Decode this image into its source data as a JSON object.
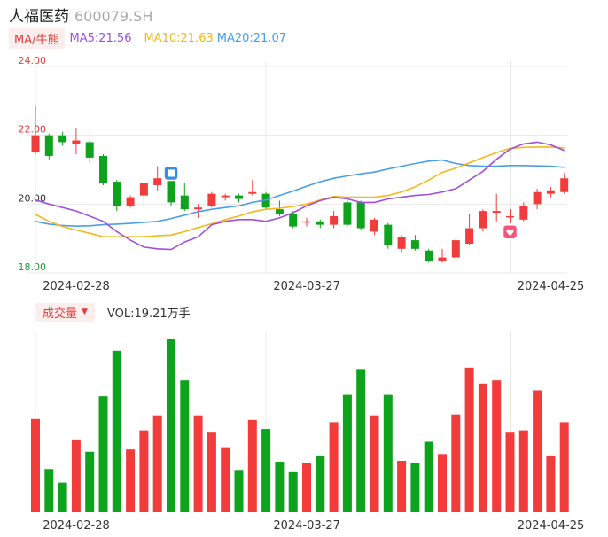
{
  "header": {
    "name": "人福医药",
    "code": "600079.SH"
  },
  "ma": {
    "toggle": "MA/牛熊",
    "ma5": "MA5:21.56",
    "ma10": "MA10:21.63",
    "ma20": "MA20:21.07"
  },
  "volume": {
    "toggle": "成交量",
    "label": "VOL:19.21万手"
  },
  "colors": {
    "up": "#f23b3b",
    "down": "#0ea31c",
    "ma5": "#a14fdb",
    "ma10": "#f3b81c",
    "ma20": "#4a9ee6",
    "grid": "#e8e8e8"
  },
  "badges": [
    {
      "icon": "blue-badge-icon",
      "index": 10
    },
    {
      "icon": "heart-badge-icon",
      "index": 35
    }
  ],
  "chart_data": {
    "type": "candlestick",
    "y_ticks": [
      "24.00",
      "22.00",
      "20.00",
      "18.00"
    ],
    "y_tick_values": [
      24,
      22,
      20,
      18
    ],
    "ylim": [
      18,
      24
    ],
    "x_ticks": [
      {
        "label": "2024-02-28",
        "index": 0
      },
      {
        "label": "2024-03-27",
        "index": 17
      },
      {
        "label": "2024-04-25",
        "index": 35
      }
    ],
    "candles": [
      {
        "o": 21.5,
        "c": 22.0,
        "h": 22.85,
        "l": 21.45,
        "v": 2.05
      },
      {
        "o": 22.0,
        "c": 21.4,
        "h": 22.05,
        "l": 21.3,
        "v": 0.95
      },
      {
        "o": 22.0,
        "c": 21.8,
        "h": 22.1,
        "l": 21.7,
        "v": 0.65
      },
      {
        "o": 21.75,
        "c": 21.85,
        "h": 22.2,
        "l": 21.45,
        "v": 1.6
      },
      {
        "o": 21.8,
        "c": 21.35,
        "h": 21.85,
        "l": 21.2,
        "v": 1.33
      },
      {
        "o": 21.4,
        "c": 20.6,
        "h": 21.45,
        "l": 20.55,
        "v": 2.55
      },
      {
        "o": 20.65,
        "c": 19.95,
        "h": 20.7,
        "l": 19.8,
        "v": 3.55
      },
      {
        "o": 19.95,
        "c": 20.2,
        "h": 20.25,
        "l": 19.9,
        "v": 1.38
      },
      {
        "o": 20.25,
        "c": 20.6,
        "h": 20.65,
        "l": 19.9,
        "v": 1.8
      },
      {
        "o": 20.55,
        "c": 20.75,
        "h": 21.1,
        "l": 20.4,
        "v": 2.13
      },
      {
        "o": 20.8,
        "c": 20.05,
        "h": 20.95,
        "l": 19.95,
        "v": 3.8
      },
      {
        "o": 20.25,
        "c": 19.85,
        "h": 20.6,
        "l": 19.8,
        "v": 2.9
      },
      {
        "o": 19.85,
        "c": 19.9,
        "h": 20.0,
        "l": 19.6,
        "v": 2.13
      },
      {
        "o": 19.95,
        "c": 20.3,
        "h": 20.35,
        "l": 19.9,
        "v": 1.75
      },
      {
        "o": 20.2,
        "c": 20.25,
        "h": 20.3,
        "l": 20.1,
        "v": 1.43
      },
      {
        "o": 20.25,
        "c": 20.15,
        "h": 20.3,
        "l": 20.05,
        "v": 0.93
      },
      {
        "o": 20.3,
        "c": 20.35,
        "h": 20.7,
        "l": 20.25,
        "v": 2.03
      },
      {
        "o": 20.3,
        "c": 19.9,
        "h": 20.35,
        "l": 19.85,
        "v": 1.83
      },
      {
        "o": 19.85,
        "c": 19.7,
        "h": 20.1,
        "l": 19.65,
        "v": 1.11
      },
      {
        "o": 19.7,
        "c": 19.35,
        "h": 19.8,
        "l": 19.3,
        "v": 0.88
      },
      {
        "o": 19.5,
        "c": 19.5,
        "h": 19.6,
        "l": 19.35,
        "v": 1.08
      },
      {
        "o": 19.5,
        "c": 19.4,
        "h": 19.55,
        "l": 19.3,
        "v": 1.23
      },
      {
        "o": 19.4,
        "c": 19.65,
        "h": 19.8,
        "l": 19.3,
        "v": 1.98
      },
      {
        "o": 20.05,
        "c": 19.4,
        "h": 20.1,
        "l": 19.35,
        "v": 2.58
      },
      {
        "o": 20.05,
        "c": 19.3,
        "h": 20.1,
        "l": 19.25,
        "v": 3.15
      },
      {
        "o": 19.2,
        "c": 19.55,
        "h": 19.6,
        "l": 19.1,
        "v": 2.13
      },
      {
        "o": 19.4,
        "c": 18.8,
        "h": 19.45,
        "l": 18.7,
        "v": 2.58
      },
      {
        "o": 18.7,
        "c": 19.05,
        "h": 19.1,
        "l": 18.6,
        "v": 1.13
      },
      {
        "o": 18.95,
        "c": 18.7,
        "h": 19.1,
        "l": 18.65,
        "v": 1.08
      },
      {
        "o": 18.65,
        "c": 18.35,
        "h": 18.7,
        "l": 18.3,
        "v": 1.55
      },
      {
        "o": 18.35,
        "c": 18.45,
        "h": 18.7,
        "l": 18.3,
        "v": 1.28
      },
      {
        "o": 18.45,
        "c": 18.95,
        "h": 19.0,
        "l": 18.4,
        "v": 2.15
      },
      {
        "o": 18.85,
        "c": 19.3,
        "h": 19.7,
        "l": 18.8,
        "v": 3.18
      },
      {
        "o": 19.3,
        "c": 19.8,
        "h": 19.85,
        "l": 19.2,
        "v": 2.83
      },
      {
        "o": 19.75,
        "c": 19.8,
        "h": 20.3,
        "l": 19.5,
        "v": 2.9
      },
      {
        "o": 19.65,
        "c": 19.65,
        "h": 19.85,
        "l": 19.45,
        "v": 1.75
      },
      {
        "o": 19.55,
        "c": 19.95,
        "h": 20.05,
        "l": 19.5,
        "v": 1.8
      },
      {
        "o": 20.0,
        "c": 20.35,
        "h": 20.45,
        "l": 19.85,
        "v": 2.68
      },
      {
        "o": 20.3,
        "c": 20.4,
        "h": 20.5,
        "l": 20.2,
        "v": 1.23
      },
      {
        "o": 20.35,
        "c": 20.75,
        "h": 20.9,
        "l": 20.3,
        "v": 1.98
      }
    ],
    "ma5": [
      20.12,
      20.0,
      19.9,
      19.8,
      19.65,
      19.5,
      19.2,
      18.95,
      18.75,
      18.7,
      18.68,
      18.9,
      19.05,
      19.4,
      19.5,
      19.55,
      19.55,
      19.5,
      19.6,
      19.75,
      19.95,
      20.1,
      20.2,
      20.15,
      20.05,
      20.05,
      20.15,
      20.2,
      20.25,
      20.28,
      20.35,
      20.45,
      20.7,
      20.95,
      21.3,
      21.6,
      21.75,
      21.8,
      21.72,
      21.56
    ],
    "ma10": [
      19.7,
      19.5,
      19.35,
      19.25,
      19.15,
      19.05,
      19.05,
      19.05,
      19.05,
      19.08,
      19.1,
      19.2,
      19.32,
      19.43,
      19.55,
      19.65,
      19.78,
      19.85,
      19.88,
      19.93,
      20.0,
      20.12,
      20.22,
      20.2,
      20.2,
      20.2,
      20.25,
      20.35,
      20.5,
      20.7,
      20.92,
      21.05,
      21.2,
      21.35,
      21.5,
      21.62,
      21.65,
      21.66,
      21.66,
      21.63
    ],
    "ma20": [
      19.5,
      19.42,
      19.38,
      19.36,
      19.37,
      19.4,
      19.42,
      19.44,
      19.47,
      19.5,
      19.58,
      19.68,
      19.78,
      19.85,
      19.9,
      19.95,
      20.05,
      20.12,
      20.25,
      20.38,
      20.52,
      20.65,
      20.75,
      20.82,
      20.88,
      20.93,
      21.02,
      21.1,
      21.18,
      21.25,
      21.28,
      21.18,
      21.12,
      21.1,
      21.1,
      21.12,
      21.12,
      21.11,
      21.1,
      21.07
    ]
  }
}
